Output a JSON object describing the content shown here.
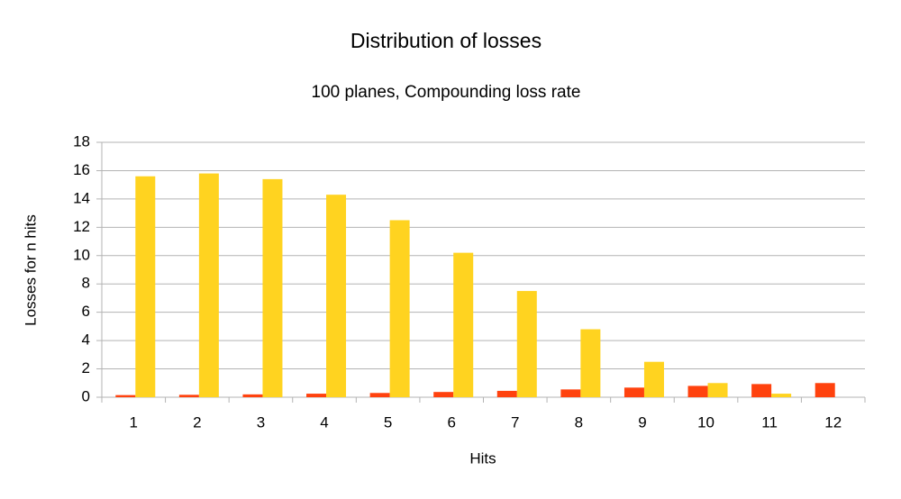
{
  "chart_data": {
    "type": "bar",
    "title": "Distribution of losses",
    "subtitle": "100 planes, Compounding loss rate",
    "x_label": "Hits",
    "y_label": "Losses for n hits",
    "categories": [
      "1",
      "2",
      "3",
      "4",
      "5",
      "6",
      "7",
      "8",
      "9",
      "10",
      "11",
      "12"
    ],
    "series": [
      {
        "color": "#ff420e",
        "values": [
          0.15,
          0.17,
          0.2,
          0.25,
          0.3,
          0.37,
          0.45,
          0.55,
          0.68,
          0.8,
          0.93,
          1.0
        ]
      },
      {
        "color": "#ffd320",
        "values": [
          15.6,
          15.8,
          15.4,
          14.3,
          12.5,
          10.2,
          7.5,
          4.8,
          2.5,
          1.0,
          0.25,
          0
        ]
      }
    ],
    "ylim": [
      0,
      18
    ],
    "yticks": [
      0,
      2,
      4,
      6,
      8,
      10,
      12,
      14,
      16,
      18
    ],
    "grid": true
  }
}
